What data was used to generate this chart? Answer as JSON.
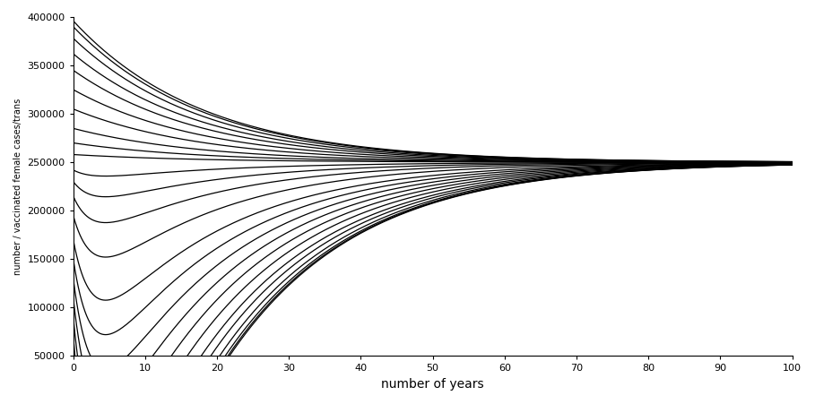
{
  "title": "",
  "xlabel": "number of years",
  "ylabel": "number / vaccinated female cases/trans",
  "xlim": [
    0,
    100
  ],
  "ylim": [
    50000,
    400000
  ],
  "yticks": [
    50000,
    100000,
    150000,
    200000,
    250000,
    300000,
    350000,
    400000
  ],
  "xticks": [
    0,
    10,
    20,
    30,
    40,
    50,
    60,
    70,
    80,
    90,
    100
  ],
  "equilibrium": 250000,
  "t_end": 100,
  "n_points": 3000,
  "line_color": "#000000",
  "line_width": 0.9,
  "background_color": "#ffffff",
  "initial_values": [
    2000,
    5000,
    10000,
    20000,
    35000,
    50000,
    70000,
    90000,
    110000,
    130000,
    150000,
    170000,
    195000,
    215000,
    230000,
    242000,
    258000,
    270000,
    285000,
    305000,
    325000,
    345000,
    362000,
    378000,
    390000,
    396000
  ],
  "slow_decay_rate": 0.055,
  "fast_decay_rate": 0.38,
  "rise_rate": 1.8
}
